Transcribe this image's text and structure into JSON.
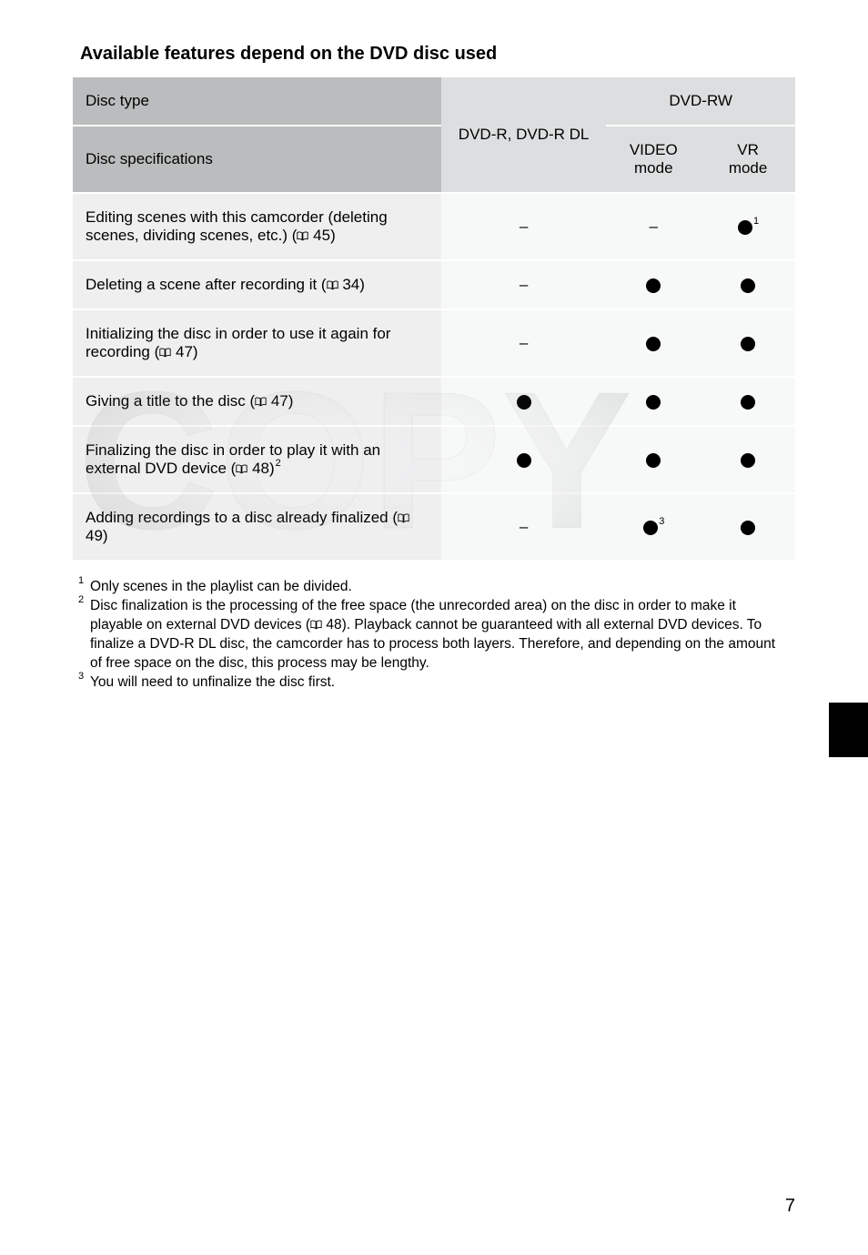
{
  "heading": "Available features depend on the DVD disc used",
  "header": {
    "disc_type": "Disc type",
    "disc_specs": "Disc specifications",
    "dvdr": "DVD-R, DVD-R DL",
    "dvdrw": "DVD-RW",
    "video_mode": "VIDEO\nmode",
    "vr_mode": "VR\nmode"
  },
  "rows": [
    {
      "label": "Editing scenes with this camcorder (deleting scenes, dividing scenes, etc.) (📖 45)",
      "c1": "–",
      "c2": "–",
      "c3": "dot",
      "c3_sup": "1"
    },
    {
      "label": "Deleting a scene after recording it (📖 34)",
      "c1": "–",
      "c2": "dot",
      "c3": "dot"
    },
    {
      "label": "Initializing the disc in order to use it again for recording (📖 47)",
      "c1": "–",
      "c2": "dot",
      "c3": "dot"
    },
    {
      "label": "Giving a title to the disc (📖 47)",
      "c1": "dot",
      "c2": "dot",
      "c3": "dot"
    },
    {
      "label": "Finalizing the disc in order to play it with an external DVD device (📖 48)²",
      "c1": "dot",
      "c2": "dot",
      "c3": "dot"
    },
    {
      "label": "Adding recordings to a disc already finalized (📖 49)",
      "c1": "–",
      "c2": "dot",
      "c2_sup": "3",
      "c3": "dot"
    }
  ],
  "footnotes": {
    "f1": "Only scenes in the playlist can be divided.",
    "f2": "Disc finalization is the processing of the free space (the unrecorded area) on the disc in order to make it playable on external DVD devices (📖 48). Playback cannot be guaranteed with all external DVD devices. To finalize a DVD-R DL disc, the camcorder has to process both layers. Therefore, and depending on the amount of free space on the disc, this process may be lengthy.",
    "f3": "You will need to unfinalize the disc first."
  },
  "pagenum": "7",
  "colors": {
    "hdr_dark": "#bbbcbd",
    "hdr_light": "#dddedf",
    "row_left": "#efeff0",
    "row_right": "#f7f8f8",
    "text": "#000000"
  },
  "watermark": {
    "text": "COPY",
    "fill": "#464a4d",
    "opacity": 0.1,
    "fontsize": 215
  }
}
